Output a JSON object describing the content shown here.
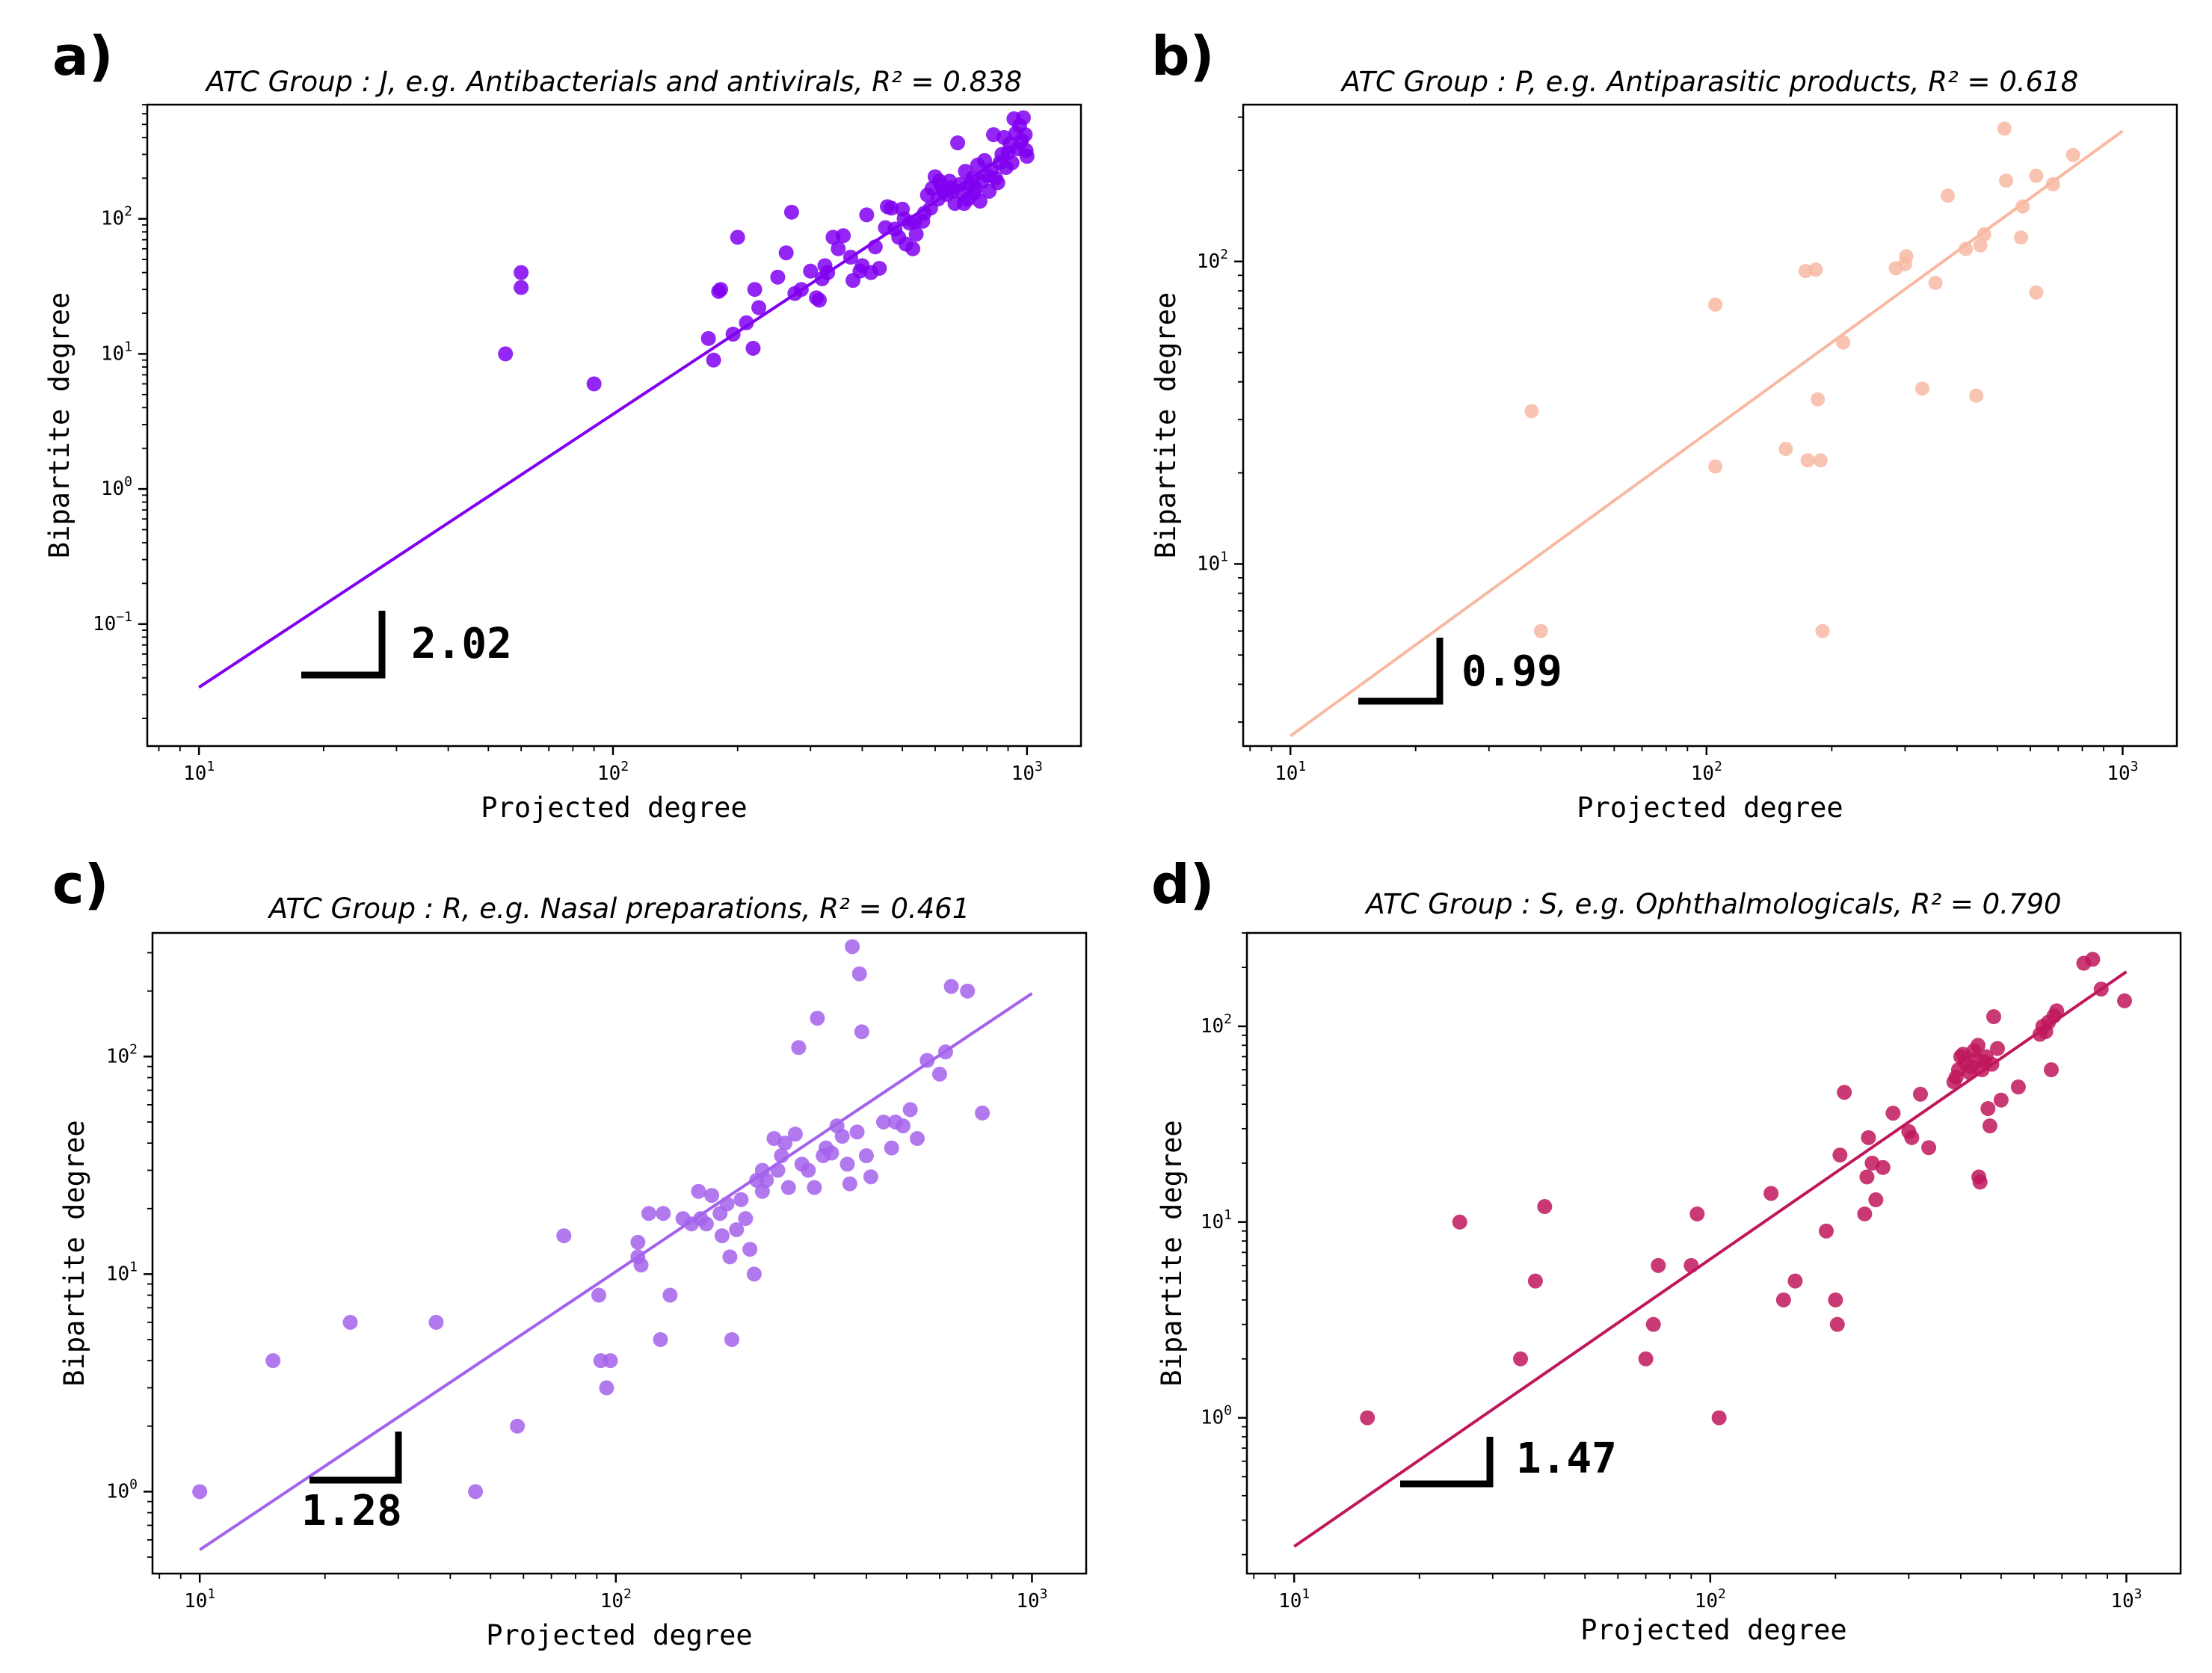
{
  "chart_data": [
    {
      "type": "scatter",
      "panel_label": "a)",
      "title": "ATC Group : J, e.g. Antibacterials and antivirals, R² = 0.838",
      "xlabel": "Projected degree",
      "ylabel": "Bipartite degree",
      "x_scale": "log",
      "y_scale": "log",
      "xlim": [
        7.5,
        1350
      ],
      "ylim": [
        0.0125,
        700
      ],
      "x_ticks": [
        {
          "base": "10",
          "exp": "1"
        },
        {
          "base": "10",
          "exp": "2"
        },
        {
          "base": "10",
          "exp": "3"
        }
      ],
      "y_ticks": [
        {
          "base": "10",
          "exp": "−1"
        },
        {
          "base": "10",
          "exp": "0"
        },
        {
          "base": "10",
          "exp": "1"
        },
        {
          "base": "10",
          "exp": "2"
        }
      ],
      "color": "#8000f0",
      "fit": {
        "x": [
          10,
          1000
        ],
        "y": [
          0.034,
          376
        ],
        "slope_label": "2.02"
      },
      "points": [
        [
          55,
          10
        ],
        [
          60,
          40
        ],
        [
          60,
          31
        ],
        [
          90,
          6
        ],
        [
          170,
          13
        ],
        [
          175,
          9
        ],
        [
          180,
          29
        ],
        [
          182,
          30
        ],
        [
          195,
          14
        ],
        [
          200,
          73
        ],
        [
          210,
          17
        ],
        [
          218,
          11
        ],
        [
          220,
          30
        ],
        [
          225,
          22
        ],
        [
          250,
          37
        ],
        [
          262,
          56
        ],
        [
          270,
          112
        ],
        [
          275,
          28
        ],
        [
          285,
          30
        ],
        [
          300,
          41
        ],
        [
          310,
          26
        ],
        [
          315,
          25
        ],
        [
          320,
          36
        ],
        [
          325,
          45
        ],
        [
          330,
          40
        ],
        [
          340,
          73
        ],
        [
          350,
          60
        ],
        [
          360,
          75
        ],
        [
          375,
          52
        ],
        [
          380,
          35
        ],
        [
          395,
          41
        ],
        [
          400,
          45
        ],
        [
          410,
          107
        ],
        [
          420,
          40
        ],
        [
          430,
          62
        ],
        [
          440,
          43
        ],
        [
          455,
          86
        ],
        [
          460,
          123
        ],
        [
          470,
          120
        ],
        [
          480,
          84
        ],
        [
          490,
          73
        ],
        [
          500,
          118
        ],
        [
          510,
          65
        ],
        [
          520,
          93
        ],
        [
          530,
          60
        ],
        [
          540,
          77
        ],
        [
          560,
          96
        ],
        [
          575,
          150
        ],
        [
          585,
          120
        ],
        [
          590,
          168
        ],
        [
          600,
          205
        ],
        [
          610,
          140
        ],
        [
          620,
          176
        ],
        [
          630,
          160
        ],
        [
          640,
          152
        ],
        [
          650,
          190
        ],
        [
          660,
          160
        ],
        [
          670,
          130
        ],
        [
          680,
          365
        ],
        [
          690,
          180
        ],
        [
          700,
          155
        ],
        [
          710,
          225
        ],
        [
          720,
          140
        ],
        [
          730,
          180
        ],
        [
          740,
          200
        ],
        [
          750,
          168
        ],
        [
          760,
          250
        ],
        [
          770,
          135
        ],
        [
          780,
          190
        ],
        [
          790,
          270
        ],
        [
          800,
          210
        ],
        [
          810,
          160
        ],
        [
          820,
          230
        ],
        [
          830,
          420
        ],
        [
          840,
          200
        ],
        [
          850,
          185
        ],
        [
          860,
          260
        ],
        [
          870,
          300
        ],
        [
          880,
          400
        ],
        [
          890,
          240
        ],
        [
          900,
          310
        ],
        [
          910,
          360
        ],
        [
          920,
          260
        ],
        [
          930,
          550
        ],
        [
          940,
          430
        ],
        [
          950,
          330
        ],
        [
          960,
          490
        ],
        [
          970,
          380
        ],
        [
          980,
          560
        ],
        [
          990,
          420
        ],
        [
          995,
          320
        ],
        [
          1000,
          290
        ],
        [
          745,
          155
        ],
        [
          705,
          130
        ],
        [
          655,
          170
        ],
        [
          615,
          190
        ],
        [
          565,
          110
        ],
        [
          535,
          95
        ],
        [
          505,
          100
        ]
      ]
    },
    {
      "type": "scatter",
      "panel_label": "b)",
      "title": "ATC Group : P, e.g. Antiparasitic products, R² = 0.618",
      "xlabel": "Projected degree",
      "ylabel": "Bipartite degree",
      "x_scale": "log",
      "y_scale": "log",
      "xlim": [
        7.7,
        1350
      ],
      "ylim": [
        2.5,
        330
      ],
      "x_ticks": [
        {
          "base": "10",
          "exp": "1"
        },
        {
          "base": "10",
          "exp": "2"
        },
        {
          "base": "10",
          "exp": "3"
        }
      ],
      "y_ticks": [
        {
          "base": "10",
          "exp": "1"
        },
        {
          "base": "10",
          "exp": "2"
        }
      ],
      "color": "#f7b9a2",
      "fit": {
        "x": [
          10,
          1000
        ],
        "y": [
          2.7,
          270
        ],
        "slope_label": "0.99"
      },
      "points": [
        [
          38,
          32
        ],
        [
          40,
          6
        ],
        [
          105,
          72
        ],
        [
          105,
          21
        ],
        [
          155,
          24
        ],
        [
          173,
          93
        ],
        [
          175,
          22
        ],
        [
          183,
          94
        ],
        [
          185,
          35
        ],
        [
          188,
          22
        ],
        [
          190,
          6
        ],
        [
          213,
          54
        ],
        [
          285,
          95
        ],
        [
          300,
          98
        ],
        [
          302,
          104
        ],
        [
          330,
          38
        ],
        [
          355,
          85
        ],
        [
          380,
          165
        ],
        [
          420,
          110
        ],
        [
          445,
          36
        ],
        [
          455,
          113
        ],
        [
          465,
          123
        ],
        [
          520,
          275
        ],
        [
          525,
          185
        ],
        [
          570,
          120
        ],
        [
          575,
          152
        ],
        [
          620,
          79
        ],
        [
          620,
          192
        ],
        [
          680,
          180
        ],
        [
          760,
          225
        ]
      ]
    },
    {
      "type": "scatter",
      "panel_label": "c)",
      "title": "ATC Group : R, e.g. Nasal preparations, R² = 0.461",
      "xlabel": "Projected degree",
      "ylabel": "Bipartite degree",
      "x_scale": "log",
      "y_scale": "log",
      "xlim": [
        7.7,
        1350
      ],
      "ylim": [
        0.42,
        370
      ],
      "x_ticks": [
        {
          "base": "10",
          "exp": "1"
        },
        {
          "base": "10",
          "exp": "2"
        },
        {
          "base": "10",
          "exp": "3"
        }
      ],
      "y_ticks": [
        {
          "base": "10",
          "exp": "0"
        },
        {
          "base": "10",
          "exp": "1"
        },
        {
          "base": "10",
          "exp": "2"
        }
      ],
      "color": "#a461ec",
      "fit": {
        "x": [
          10,
          1000
        ],
        "y": [
          0.54,
          195
        ],
        "slope_label": "1.28"
      },
      "points": [
        [
          10,
          1
        ],
        [
          15,
          4
        ],
        [
          23,
          6
        ],
        [
          37,
          6
        ],
        [
          46,
          1
        ],
        [
          58,
          2
        ],
        [
          75,
          15
        ],
        [
          91,
          8
        ],
        [
          92,
          4
        ],
        [
          95,
          3
        ],
        [
          97,
          4
        ],
        [
          113,
          12
        ],
        [
          113,
          14
        ],
        [
          115,
          11
        ],
        [
          120,
          19
        ],
        [
          128,
          5
        ],
        [
          130,
          19
        ],
        [
          135,
          8
        ],
        [
          145,
          18
        ],
        [
          158,
          24
        ],
        [
          160,
          18
        ],
        [
          165,
          17
        ],
        [
          170,
          23
        ],
        [
          178,
          19
        ],
        [
          180,
          15
        ],
        [
          185,
          21
        ],
        [
          188,
          12
        ],
        [
          190,
          5
        ],
        [
          195,
          16
        ],
        [
          200,
          22
        ],
        [
          210,
          13
        ],
        [
          215,
          10
        ],
        [
          218,
          27
        ],
        [
          225,
          24
        ],
        [
          230,
          27
        ],
        [
          240,
          42
        ],
        [
          245,
          30
        ],
        [
          250,
          35
        ],
        [
          260,
          25
        ],
        [
          270,
          44
        ],
        [
          275,
          110
        ],
        [
          280,
          32
        ],
        [
          290,
          30
        ],
        [
          300,
          25
        ],
        [
          305,
          150
        ],
        [
          315,
          35
        ],
        [
          330,
          36
        ],
        [
          340,
          48
        ],
        [
          350,
          43
        ],
        [
          360,
          32
        ],
        [
          370,
          320
        ],
        [
          380,
          45
        ],
        [
          385,
          240
        ],
        [
          390,
          130
        ],
        [
          400,
          35
        ],
        [
          410,
          28
        ],
        [
          440,
          50
        ],
        [
          460,
          38
        ],
        [
          470,
          50
        ],
        [
          490,
          48
        ],
        [
          510,
          57
        ],
        [
          530,
          42
        ],
        [
          560,
          96
        ],
        [
          600,
          83
        ],
        [
          620,
          105
        ],
        [
          640,
          210
        ],
        [
          700,
          200
        ],
        [
          760,
          55
        ],
        [
          365,
          26
        ],
        [
          255,
          40
        ],
        [
          205,
          18
        ],
        [
          152,
          17
        ],
        [
          225,
          30
        ],
        [
          320,
          38
        ]
      ]
    },
    {
      "type": "scatter",
      "panel_label": "d)",
      "title": "ATC Group : S, e.g. Ophthalmologicals, R² = 0.790",
      "xlabel": "Projected degree",
      "ylabel": "Bipartite degree",
      "x_scale": "log",
      "y_scale": "log",
      "xlim": [
        7.7,
        1350
      ],
      "ylim": [
        0.16,
        300
      ],
      "x_ticks": [
        {
          "base": "10",
          "exp": "1"
        },
        {
          "base": "10",
          "exp": "2"
        },
        {
          "base": "10",
          "exp": "3"
        }
      ],
      "y_ticks": [
        {
          "base": "10",
          "exp": "0"
        },
        {
          "base": "10",
          "exp": "1"
        },
        {
          "base": "10",
          "exp": "2"
        }
      ],
      "color": "#c0175c",
      "fit": {
        "x": [
          10,
          1000
        ],
        "y": [
          0.22,
          190
        ],
        "slope_label": "1.47"
      },
      "points": [
        [
          15,
          1
        ],
        [
          25,
          10
        ],
        [
          35,
          2
        ],
        [
          38,
          5
        ],
        [
          40,
          12
        ],
        [
          70,
          2
        ],
        [
          73,
          3
        ],
        [
          75,
          6
        ],
        [
          90,
          6
        ],
        [
          93,
          11
        ],
        [
          105,
          1
        ],
        [
          140,
          14
        ],
        [
          150,
          4
        ],
        [
          160,
          5
        ],
        [
          190,
          9
        ],
        [
          200,
          4
        ],
        [
          202,
          3
        ],
        [
          205,
          22
        ],
        [
          210,
          46
        ],
        [
          235,
          11
        ],
        [
          238,
          17
        ],
        [
          240,
          27
        ],
        [
          245,
          20
        ],
        [
          250,
          13
        ],
        [
          260,
          19
        ],
        [
          275,
          36
        ],
        [
          300,
          29
        ],
        [
          305,
          27
        ],
        [
          320,
          45
        ],
        [
          335,
          24
        ],
        [
          390,
          55
        ],
        [
          395,
          60
        ],
        [
          400,
          70
        ],
        [
          405,
          72
        ],
        [
          410,
          65
        ],
        [
          420,
          58
        ],
        [
          430,
          75
        ],
        [
          435,
          68
        ],
        [
          440,
          80
        ],
        [
          442,
          17
        ],
        [
          445,
          16
        ],
        [
          450,
          60
        ],
        [
          460,
          70
        ],
        [
          465,
          38
        ],
        [
          470,
          31
        ],
        [
          475,
          64
        ],
        [
          480,
          112
        ],
        [
          490,
          77
        ],
        [
          500,
          42
        ],
        [
          550,
          49
        ],
        [
          620,
          91
        ],
        [
          630,
          100
        ],
        [
          640,
          94
        ],
        [
          650,
          105
        ],
        [
          660,
          60
        ],
        [
          670,
          113
        ],
        [
          680,
          120
        ],
        [
          790,
          210
        ],
        [
          830,
          220
        ],
        [
          870,
          155
        ],
        [
          990,
          135
        ],
        [
          385,
          52
        ],
        [
          425,
          62
        ],
        [
          455,
          66
        ]
      ]
    }
  ]
}
